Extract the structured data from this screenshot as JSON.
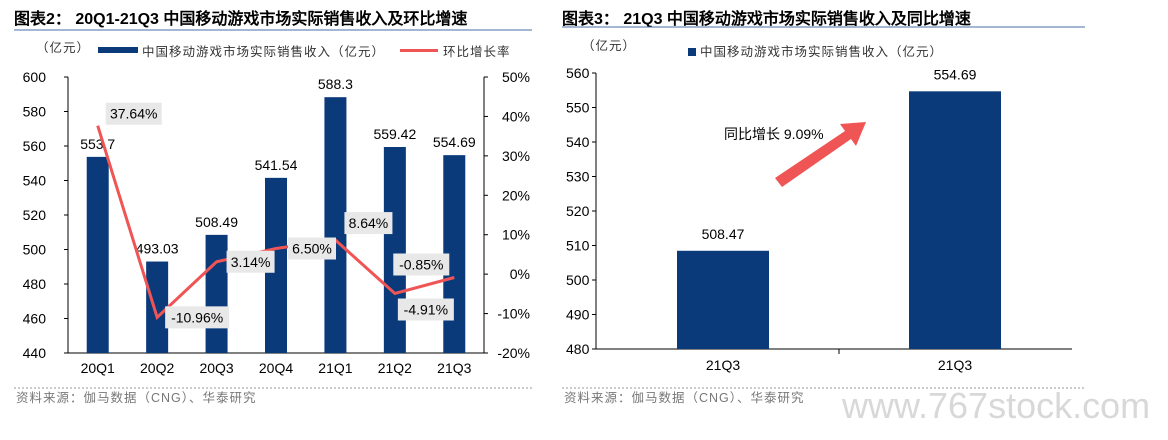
{
  "chart_data": [
    {
      "type": "bar",
      "title": "图表2： 20Q1-21Q3 中国移动游戏市场实际销售收入及环比增速",
      "unit_label": "（亿元）",
      "categories": [
        "20Q1",
        "20Q2",
        "20Q3",
        "20Q4",
        "21Q1",
        "21Q2",
        "21Q3"
      ],
      "series": [
        {
          "name": "中国移动游戏市场实际销售收入（亿元）",
          "type": "bar",
          "axis": "left",
          "color": "#0a3a7a",
          "values": [
            553.7,
            493.03,
            508.49,
            541.54,
            588.3,
            559.42,
            554.69
          ],
          "labels": [
            "553.7",
            "493.03",
            "508.49",
            "541.54",
            "588.3",
            "559.42",
            "554.69"
          ]
        },
        {
          "name": "环比增长率",
          "type": "line",
          "axis": "right",
          "color": "#f05555",
          "values": [
            37.64,
            -10.96,
            3.14,
            6.5,
            8.64,
            -4.91,
            -0.85
          ],
          "labels": [
            "37.64%",
            "-10.96%",
            "3.14%",
            "6.50%",
            "8.64%",
            "-4.91%",
            "-0.85%"
          ]
        }
      ],
      "ylim": [
        440,
        600
      ],
      "yticks": [
        "440",
        "460",
        "480",
        "500",
        "520",
        "540",
        "560",
        "580",
        "600"
      ],
      "y2lim": [
        -20,
        50
      ],
      "y2ticks": [
        "-20%",
        "-10%",
        "0%",
        "10%",
        "20%",
        "30%",
        "40%",
        "50%"
      ],
      "legend": "top",
      "source": "资料来源：伽马数据（CNG）、华泰研究"
    },
    {
      "type": "bar",
      "title": "图表3： 21Q3 中国移动游戏市场实际销售收入及同比增速",
      "unit_label": "（亿元）",
      "categories": [
        "21Q3",
        "21Q3"
      ],
      "series": [
        {
          "name": "中国移动游戏市场实际销售收入（亿元）",
          "color": "#0a3a7a",
          "values": [
            508.47,
            554.69
          ],
          "labels": [
            "508.47",
            "554.69"
          ]
        }
      ],
      "ylim": [
        480,
        560
      ],
      "yticks": [
        "480",
        "490",
        "500",
        "510",
        "520",
        "530",
        "540",
        "550",
        "560"
      ],
      "annotation": "同比增长 9.09%",
      "legend": "top",
      "source": "资料来源：伽马数据（CNG）、华泰研究"
    }
  ],
  "watermark": "www.767stock.com"
}
